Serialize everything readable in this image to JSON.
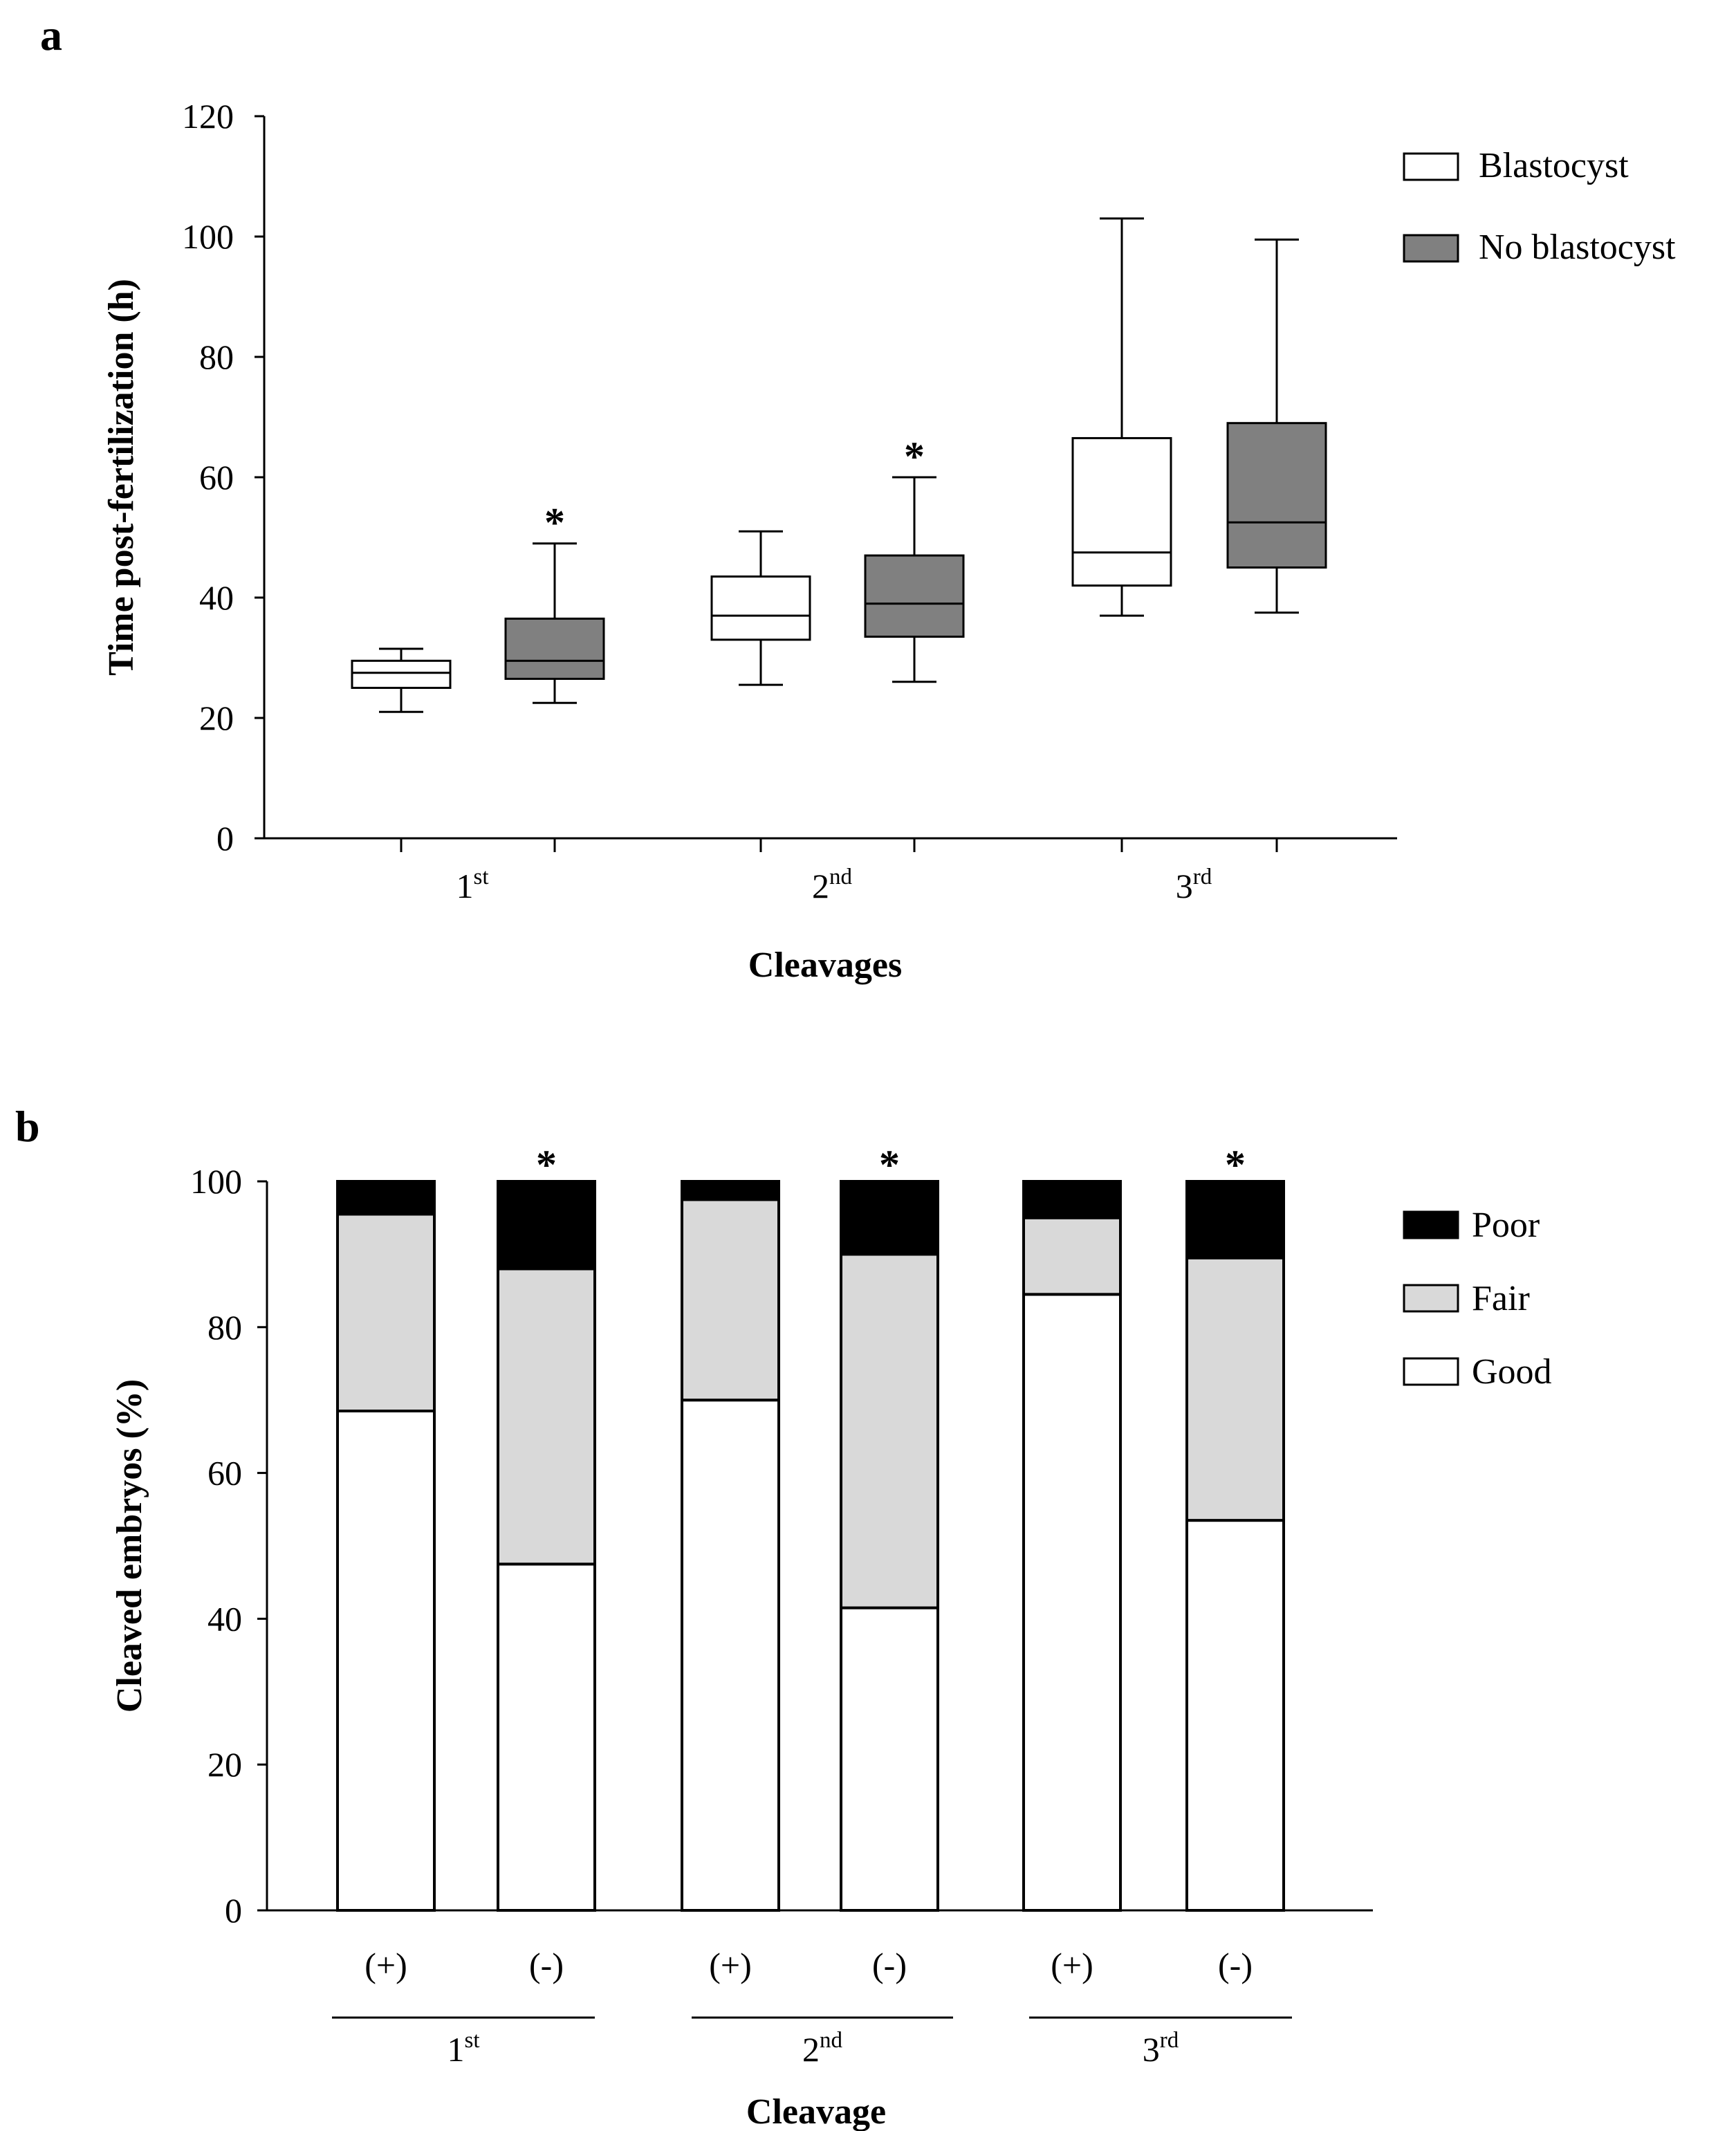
{
  "figure": {
    "panel_a_label": "a",
    "panel_b_label": "b"
  },
  "chart_data": [
    {
      "type": "box",
      "panel": "a",
      "title": "",
      "xlabel": "Cleavages",
      "ylabel": "Time post-fertilization (h)",
      "ylim": [
        0,
        120
      ],
      "yticks": [
        0,
        20,
        40,
        60,
        80,
        100,
        120
      ],
      "categories": [
        {
          "base": "1",
          "sup": "st"
        },
        {
          "base": "2",
          "sup": "nd"
        },
        {
          "base": "3",
          "sup": "rd"
        }
      ],
      "series": [
        {
          "name": "Blastocyst",
          "color": "#ffffff",
          "boxes": [
            {
              "min": 21,
              "q1": 25,
              "median": 27.5,
              "q3": 29.5,
              "max": 31.5,
              "significant": false
            },
            {
              "min": 25.5,
              "q1": 33,
              "median": 37,
              "q3": 43.5,
              "max": 51,
              "significant": false
            },
            {
              "min": 37,
              "q1": 42,
              "median": 47.5,
              "q3": 66.5,
              "max": 103,
              "significant": false
            }
          ]
        },
        {
          "name": "No blastocyst",
          "color": "#808080",
          "boxes": [
            {
              "min": 22.5,
              "q1": 26.5,
              "median": 29.5,
              "q3": 36.5,
              "max": 49,
              "significant": true
            },
            {
              "min": 26,
              "q1": 33.5,
              "median": 39,
              "q3": 47,
              "max": 60,
              "significant": true
            },
            {
              "min": 37.5,
              "q1": 45,
              "median": 52.5,
              "q3": 69,
              "max": 99.5,
              "significant": false
            }
          ]
        }
      ],
      "significance_marker": "*",
      "grid": false,
      "legend": "top-right"
    },
    {
      "type": "stacked_bar",
      "panel": "b",
      "title": "",
      "xlabel": "Cleavage",
      "ylabel": "Cleaved embryos (%)",
      "ylim": [
        0,
        100
      ],
      "yticks": [
        0,
        20,
        40,
        60,
        80,
        100
      ],
      "groups": [
        {
          "base": "1",
          "sup": "st"
        },
        {
          "base": "2",
          "sup": "nd"
        },
        {
          "base": "3",
          "sup": "rd"
        }
      ],
      "bar_labels": [
        "(+)",
        "(-)",
        "(+)",
        "(-)",
        "(+)",
        "(-)"
      ],
      "significant": [
        false,
        true,
        false,
        true,
        false,
        true
      ],
      "significance_marker": "*",
      "series": [
        {
          "name": "Good",
          "color": "#ffffff",
          "values": [
            68.5,
            47.5,
            70,
            41.5,
            84.5,
            53.5
          ]
        },
        {
          "name": "Fair",
          "color": "#d9d9d9",
          "values": [
            27,
            40.5,
            27.5,
            48.5,
            10.5,
            36
          ]
        },
        {
          "name": "Poor",
          "color": "#000000",
          "values": [
            4.5,
            12,
            2.5,
            10,
            5,
            10.5
          ]
        }
      ],
      "legend_order": [
        "Poor",
        "Fair",
        "Good"
      ],
      "grid": false,
      "legend": "top-right"
    }
  ]
}
